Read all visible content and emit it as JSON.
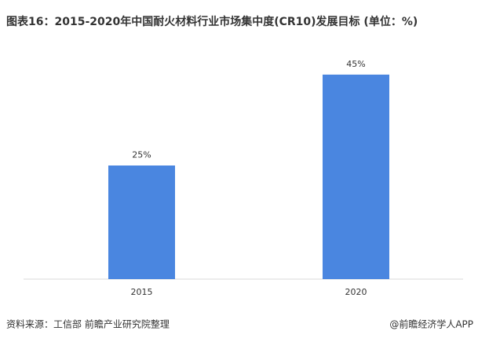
{
  "chart_data": {
    "type": "bar",
    "title": "图表16：2015-2020年中国耐火材料行业市场集中度(CR10)发展目标 (单位：%)",
    "categories": [
      "2015",
      "2020"
    ],
    "values": [
      25,
      45
    ],
    "value_labels": [
      "25%",
      "45%"
    ],
    "color": "#4a86e0",
    "ylim": [
      0,
      50
    ],
    "source": "资料来源：工信部 前瞻产业研究院整理",
    "credit": "@前瞻经济学人APP"
  }
}
